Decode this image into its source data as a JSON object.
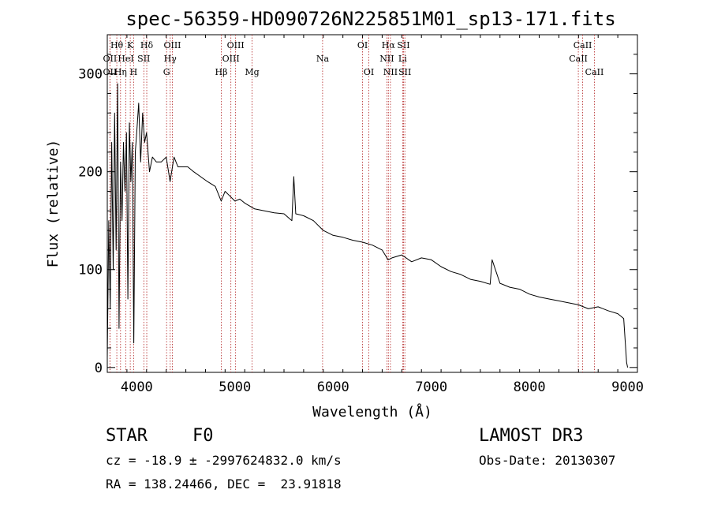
{
  "chart_data": {
    "type": "line",
    "title": "spec-56359-HD090726N225851M01_sp13-171.fits",
    "xlabel": "Wavelength (Å)",
    "ylabel": "Flux (relative)",
    "xlim": [
      3700,
      9100
    ],
    "ylim": [
      -5,
      340
    ],
    "xticks": [
      4000,
      5000,
      6000,
      7000,
      8000,
      9000
    ],
    "yticks": [
      0,
      100,
      200,
      300
    ],
    "series": [
      {
        "name": "spectrum",
        "x": [
          3700,
          3715,
          3730,
          3745,
          3760,
          3775,
          3790,
          3805,
          3820,
          3835,
          3850,
          3865,
          3880,
          3895,
          3910,
          3925,
          3940,
          3955,
          3970,
          3985,
          4000,
          4020,
          4040,
          4060,
          4080,
          4100,
          4130,
          4160,
          4200,
          4250,
          4300,
          4340,
          4380,
          4420,
          4470,
          4520,
          4580,
          4650,
          4720,
          4800,
          4860,
          4900,
          4950,
          5000,
          5050,
          5100,
          5150,
          5200,
          5300,
          5400,
          5500,
          5580,
          5600,
          5620,
          5700,
          5800,
          5900,
          6000,
          6100,
          6200,
          6300,
          6400,
          6500,
          6560,
          6600,
          6700,
          6800,
          6900,
          7000,
          7100,
          7200,
          7300,
          7400,
          7500,
          7600,
          7620,
          7700,
          7800,
          7900,
          8000,
          8100,
          8200,
          8300,
          8400,
          8500,
          8600,
          8700,
          8800,
          8900,
          8960,
          8990,
          9000
        ],
        "y": [
          10,
          150,
          60,
          230,
          100,
          260,
          120,
          290,
          40,
          210,
          150,
          230,
          180,
          240,
          70,
          250,
          190,
          230,
          25,
          220,
          240,
          270,
          210,
          260,
          230,
          240,
          200,
          215,
          210,
          210,
          215,
          190,
          215,
          205,
          205,
          205,
          200,
          195,
          190,
          185,
          170,
          180,
          175,
          170,
          172,
          168,
          165,
          162,
          160,
          158,
          157,
          150,
          195,
          157,
          155,
          150,
          140,
          135,
          133,
          130,
          128,
          125,
          120,
          110,
          112,
          115,
          108,
          112,
          110,
          103,
          98,
          95,
          90,
          88,
          85,
          110,
          86,
          82,
          80,
          75,
          72,
          70,
          68,
          66,
          64,
          60,
          62,
          58,
          55,
          50,
          5,
          0
        ]
      }
    ],
    "lines": [
      {
        "label": "Hθ",
        "x": 3797,
        "row": 1
      },
      {
        "label": "OII",
        "x": 3727,
        "row": 2
      },
      {
        "label": "OII",
        "x": 3727,
        "row": 3
      },
      {
        "label": "K",
        "x": 3934,
        "row": 1
      },
      {
        "label": "HeI",
        "x": 3889,
        "row": 2
      },
      {
        "label": "Hη",
        "x": 3835,
        "row": 3
      },
      {
        "label": "H",
        "x": 3969,
        "row": 3
      },
      {
        "label": "Hδ",
        "x": 4102,
        "row": 1
      },
      {
        "label": "SII",
        "x": 4072,
        "row": 2
      },
      {
        "label": "OIII",
        "x": 4363,
        "row": 1
      },
      {
        "label": "Hγ",
        "x": 4341,
        "row": 2
      },
      {
        "label": "G",
        "x": 4304,
        "row": 3
      },
      {
        "label": "Hβ",
        "x": 4861,
        "row": 3
      },
      {
        "label": "OIII",
        "x": 5007,
        "row": 1
      },
      {
        "label": "OIII",
        "x": 4959,
        "row": 2
      },
      {
        "label": "Mg",
        "x": 5175,
        "row": 3
      },
      {
        "label": "Na",
        "x": 5893,
        "row": 2
      },
      {
        "label": "OI",
        "x": 6300,
        "row": 1
      },
      {
        "label": "OI",
        "x": 6364,
        "row": 3
      },
      {
        "label": "Hα",
        "x": 6563,
        "row": 1
      },
      {
        "label": "NII",
        "x": 6548,
        "row": 2
      },
      {
        "label": "NII",
        "x": 6584,
        "row": 3
      },
      {
        "label": "SII",
        "x": 6717,
        "row": 1
      },
      {
        "label": "Li",
        "x": 6708,
        "row": 2
      },
      {
        "label": "SII",
        "x": 6731,
        "row": 3
      },
      {
        "label": "CaII",
        "x": 8542,
        "row": 1
      },
      {
        "label": "CaII",
        "x": 8498,
        "row": 2
      },
      {
        "label": "CaII",
        "x": 8662,
        "row": 3
      }
    ]
  },
  "info": {
    "class": "STAR",
    "subclass": "F0",
    "survey": "LAMOST DR3",
    "cz": "cz = -18.9 ± -2997624832.0 km/s",
    "obs_date": "Obs-Date: 20130307",
    "coords": "RA = 138.24466, DEC =  23.91818"
  }
}
